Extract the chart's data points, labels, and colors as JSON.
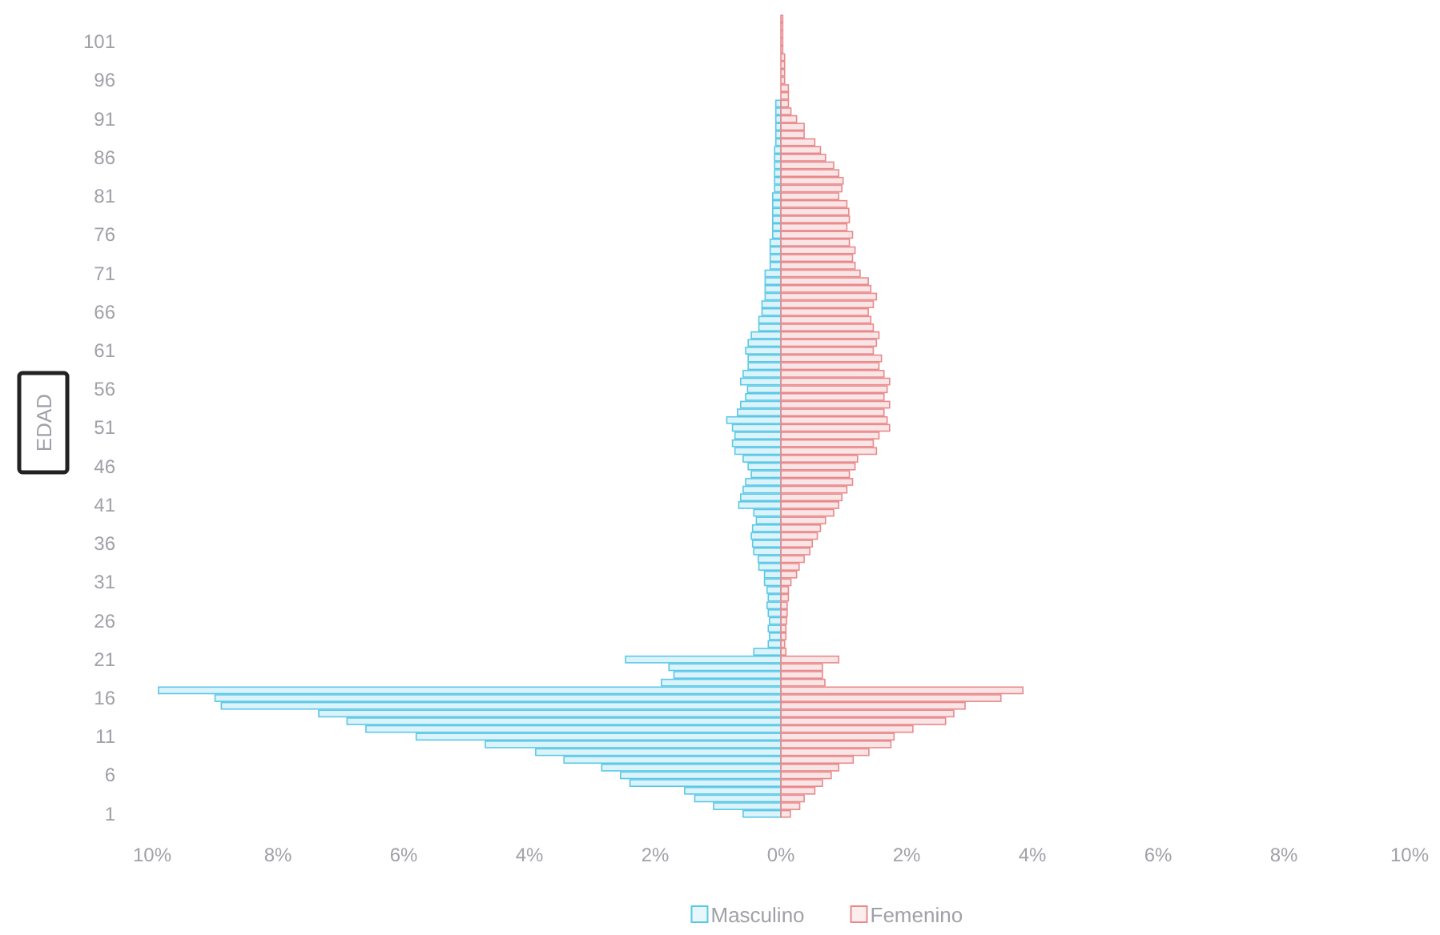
{
  "chart_data": {
    "type": "bar",
    "orientation": "horizontal",
    "ylabel": "EDAD",
    "legend": "bottom",
    "categories": [
      null,
      null,
      null,
      "101",
      null,
      null,
      null,
      null,
      "96",
      null,
      null,
      null,
      null,
      "91",
      null,
      null,
      null,
      null,
      "86",
      null,
      null,
      null,
      null,
      "81",
      null,
      null,
      null,
      null,
      "76",
      null,
      null,
      null,
      null,
      "71",
      null,
      null,
      null,
      null,
      "66",
      null,
      null,
      null,
      null,
      "61",
      null,
      null,
      null,
      null,
      "56",
      null,
      null,
      null,
      null,
      "51",
      null,
      null,
      null,
      null,
      "46",
      null,
      null,
      null,
      null,
      "41",
      null,
      null,
      null,
      null,
      "36",
      null,
      null,
      null,
      null,
      "31",
      null,
      null,
      null,
      null,
      "26",
      null,
      null,
      null,
      null,
      "21",
      null,
      null,
      null,
      null,
      "16",
      null,
      null,
      null,
      null,
      "11",
      null,
      null,
      null,
      null,
      "6",
      null,
      null,
      null,
      null,
      "1"
    ],
    "xlim": [
      -10,
      10
    ],
    "xticks": [
      {
        "value": -10,
        "label": "10%"
      },
      {
        "value": -8,
        "label": "8%"
      },
      {
        "value": -6,
        "label": "6%"
      },
      {
        "value": -4,
        "label": "4%"
      },
      {
        "value": -2,
        "label": "2%"
      },
      {
        "value": 0,
        "label": "0%"
      },
      {
        "value": 2,
        "label": "2%"
      },
      {
        "value": 4,
        "label": "4%"
      },
      {
        "value": 6,
        "label": "6%"
      },
      {
        "value": 8,
        "label": "8%"
      },
      {
        "value": 10,
        "label": "10%"
      }
    ],
    "series": [
      {
        "name": "Masculino",
        "color": "#5cc8e6",
        "values": [
          0,
          0,
          0,
          0,
          0,
          0,
          0,
          0,
          0,
          0,
          0,
          -0.08,
          -0.08,
          -0.08,
          -0.08,
          -0.08,
          -0.08,
          -0.1,
          -0.1,
          -0.1,
          -0.1,
          -0.1,
          -0.1,
          -0.13,
          -0.13,
          -0.13,
          -0.13,
          -0.13,
          -0.13,
          -0.17,
          -0.17,
          -0.17,
          -0.17,
          -0.25,
          -0.25,
          -0.25,
          -0.25,
          -0.3,
          -0.3,
          -0.35,
          -0.35,
          -0.47,
          -0.52,
          -0.56,
          -0.52,
          -0.52,
          -0.6,
          -0.64,
          -0.53,
          -0.56,
          -0.64,
          -0.69,
          -0.86,
          -0.77,
          -0.73,
          -0.77,
          -0.73,
          -0.6,
          -0.52,
          -0.47,
          -0.56,
          -0.6,
          -0.64,
          -0.67,
          -0.43,
          -0.39,
          -0.45,
          -0.47,
          -0.45,
          -0.43,
          -0.36,
          -0.35,
          -0.26,
          -0.26,
          -0.22,
          -0.2,
          -0.22,
          -0.2,
          -0.18,
          -0.2,
          -0.18,
          -0.2,
          -0.43,
          -2.47,
          -1.78,
          -1.7,
          -1.9,
          -9.9,
          -9.0,
          -8.9,
          -7.35,
          -6.9,
          -6.6,
          -5.8,
          -4.7,
          -3.9,
          -3.45,
          -2.85,
          -2.55,
          -2.4,
          -1.53,
          -1.37,
          -1.07,
          -0.6
        ]
      },
      {
        "name": "Femenino",
        "color": "#e88a8c",
        "values": [
          0.03,
          0.03,
          0.03,
          0.03,
          0.03,
          0.06,
          0.06,
          0.06,
          0.06,
          0.12,
          0.12,
          0.12,
          0.16,
          0.25,
          0.37,
          0.37,
          0.54,
          0.63,
          0.71,
          0.84,
          0.92,
          0.99,
          0.97,
          0.92,
          1.05,
          1.08,
          1.09,
          1.05,
          1.14,
          1.09,
          1.18,
          1.14,
          1.18,
          1.26,
          1.39,
          1.43,
          1.52,
          1.47,
          1.39,
          1.43,
          1.47,
          1.56,
          1.52,
          1.47,
          1.6,
          1.56,
          1.64,
          1.73,
          1.69,
          1.64,
          1.73,
          1.64,
          1.69,
          1.73,
          1.56,
          1.47,
          1.52,
          1.22,
          1.18,
          1.09,
          1.14,
          1.05,
          0.97,
          0.92,
          0.84,
          0.71,
          0.63,
          0.58,
          0.5,
          0.46,
          0.37,
          0.29,
          0.25,
          0.16,
          0.12,
          0.12,
          0.1,
          0.1,
          0.09,
          0.08,
          0.08,
          0.06,
          0.08,
          0.92,
          0.66,
          0.66,
          0.7,
          3.85,
          3.5,
          2.93,
          2.75,
          2.62,
          2.1,
          1.8,
          1.75,
          1.4,
          1.15,
          0.92,
          0.8,
          0.66,
          0.54,
          0.37,
          0.3,
          0.15
        ]
      }
    ]
  }
}
